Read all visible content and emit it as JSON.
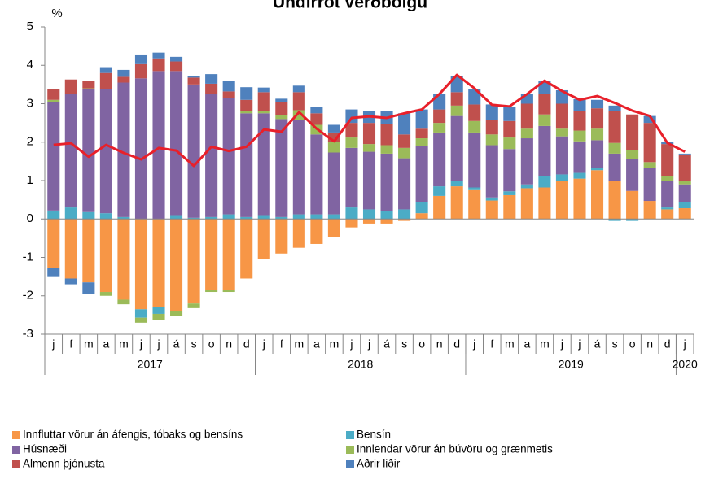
{
  "chart_data": {
    "type": "stacked_bar_line",
    "title": "Undirrót verðbólgu",
    "y_label": "%",
    "categories": [
      "j",
      "f",
      "m",
      "a",
      "m",
      "j",
      "j",
      "á",
      "s",
      "o",
      "n",
      "d",
      "j",
      "f",
      "m",
      "a",
      "m",
      "j",
      "j",
      "á",
      "s",
      "o",
      "n",
      "d",
      "j",
      "f",
      "m",
      "a",
      "m",
      "j",
      "j",
      "á",
      "s",
      "o",
      "n",
      "d",
      "j"
    ],
    "years": [
      "2017",
      "2018",
      "2019",
      "2020"
    ],
    "ylim": [
      -3,
      5
    ],
    "yticks": [
      -3,
      -2,
      -1,
      0,
      1,
      2,
      3,
      4,
      5
    ],
    "series": [
      {
        "name": "Innfluttar vörur án áfengis, tóbaks og bensíns",
        "color": "#f79646",
        "values": [
          -1.27,
          -1.55,
          -1.65,
          -1.9,
          -2.1,
          -2.35,
          -2.3,
          -2.4,
          -2.2,
          -1.85,
          -1.85,
          -1.55,
          -1.05,
          -0.9,
          -0.75,
          -0.65,
          -0.48,
          -0.22,
          -0.12,
          -0.12,
          -0.05,
          0.15,
          0.6,
          0.85,
          0.75,
          0.48,
          0.62,
          0.8,
          0.82,
          0.98,
          1.05,
          1.27,
          0.98,
          0.73,
          0.47,
          0.25,
          0.28
        ]
      },
      {
        "name": "Bensín",
        "color": "#4bacc6",
        "values": [
          0.22,
          0.3,
          0.18,
          0.15,
          0.05,
          -0.22,
          -0.17,
          0.1,
          0.03,
          0.05,
          0.12,
          0.05,
          0.1,
          0.05,
          0.12,
          0.12,
          0.12,
          0.3,
          0.25,
          0.2,
          0.25,
          0.28,
          0.25,
          0.15,
          0.07,
          0.08,
          0.1,
          0.1,
          0.3,
          0.18,
          0.15,
          0.05,
          -0.05,
          -0.05,
          0,
          0.05,
          0.15
        ]
      },
      {
        "name": "Húsnæði",
        "color": "#8064a2",
        "values": [
          2.83,
          2.95,
          3.2,
          3.23,
          3.5,
          3.66,
          3.85,
          3.75,
          3.47,
          3.2,
          3.03,
          2.7,
          2.65,
          2.55,
          2.46,
          2.08,
          1.61,
          1.55,
          1.5,
          1.5,
          1.33,
          1.47,
          1.4,
          1.68,
          1.43,
          1.36,
          1.1,
          1.2,
          1.3,
          0.99,
          0.82,
          0.73,
          0.72,
          0.82,
          0.86,
          0.68,
          0.47
        ]
      },
      {
        "name": "Innlendar vörur án búvöru og grænmetis",
        "color": "#9bbb59",
        "values": [
          0.05,
          0,
          0.02,
          -0.1,
          -0.12,
          -0.13,
          -0.15,
          -0.12,
          -0.12,
          -0.05,
          -0.05,
          0.05,
          0.05,
          0.1,
          0.25,
          0.25,
          0.27,
          0.27,
          0.2,
          0.22,
          0.27,
          0.2,
          0.25,
          0.27,
          0.3,
          0.28,
          0.3,
          0.25,
          0.3,
          0.2,
          0.28,
          0.3,
          0.28,
          0.25,
          0.15,
          0.13,
          0.1
        ]
      },
      {
        "name": "Almenn þjónusta",
        "color": "#c0504d",
        "values": [
          0.28,
          0.38,
          0.2,
          0.42,
          0.15,
          0.37,
          0.33,
          0.25,
          0.18,
          0.27,
          0.17,
          0.3,
          0.5,
          0.35,
          0.47,
          0.3,
          0.25,
          0.38,
          0.55,
          0.56,
          0.35,
          0.25,
          0.35,
          0.35,
          0.43,
          0.38,
          0.43,
          0.65,
          0.53,
          0.65,
          0.5,
          0.53,
          0.84,
          0.92,
          1.02,
          0.84,
          0.68
        ]
      },
      {
        "name": "Aðrir liðir",
        "color": "#4f81bd",
        "values": [
          -0.22,
          -0.15,
          -0.3,
          0.13,
          0.18,
          0.23,
          0.15,
          0.12,
          0.05,
          0.25,
          0.28,
          0.33,
          0.12,
          0.08,
          0.17,
          0.17,
          0.2,
          0.35,
          0.3,
          0.32,
          0.55,
          0.5,
          0.4,
          0.43,
          0.4,
          0.4,
          0.37,
          0.25,
          0.35,
          0.35,
          0.32,
          0.22,
          0.13,
          0,
          0.18,
          0.05,
          0.02
        ]
      }
    ],
    "line": {
      "color": "#e8202a",
      "values": [
        1.93,
        1.97,
        1.62,
        1.93,
        1.72,
        1.55,
        1.85,
        1.78,
        1.38,
        1.88,
        1.77,
        1.88,
        2.33,
        2.27,
        2.78,
        2.35,
        2.02,
        2.63,
        2.67,
        2.63,
        2.75,
        2.85,
        3.25,
        3.75,
        3.4,
        2.97,
        2.93,
        3.25,
        3.6,
        3.33,
        3.1,
        3.2,
        3.02,
        2.82,
        2.68,
        1.98,
        1.75
      ]
    }
  }
}
